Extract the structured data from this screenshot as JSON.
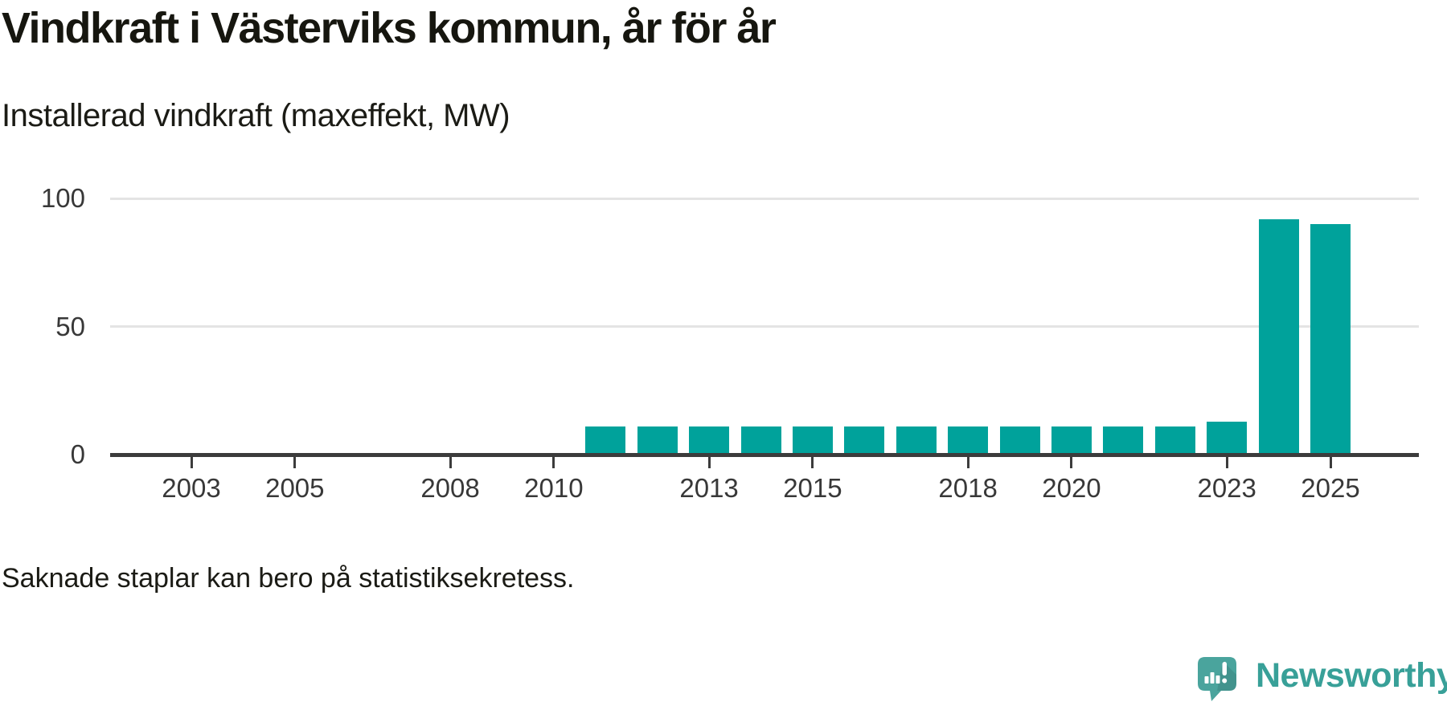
{
  "header": {
    "title": "Vindkraft i Västerviks kommun, år för år",
    "subtitle": "Installerad vindkraft (maxeffekt, MW)"
  },
  "footer": {
    "note": "Saknade staplar kan bero på statistiksekretess.",
    "brand": "Newsworthy",
    "brand_icon": "newsworthy-speech-bubble-barchart-icon"
  },
  "colors": {
    "bar": "#00a29b",
    "axis": "#3c3c3c",
    "gridline": "#e4e4e4",
    "heading_text": "#16160f",
    "tick_label_text": "#383838",
    "logo": "#38a098",
    "logo_icon": "#4aa49d"
  },
  "chart_data": {
    "type": "bar",
    "title": "Vindkraft i Västerviks kommun, år för år",
    "subtitle": "Installerad vindkraft (maxeffekt, MW)",
    "footnote": "Saknade staplar kan bero på statistiksekretess.",
    "unit": "MW",
    "categories": [
      2011,
      2012,
      2013,
      2014,
      2015,
      2016,
      2017,
      2018,
      2019,
      2020,
      2021,
      2022,
      2023,
      2024,
      2025
    ],
    "values": [
      11,
      11,
      11,
      11,
      11,
      11,
      11,
      11,
      11,
      11,
      11,
      11,
      13,
      92,
      90
    ],
    "x_ticks": [
      2003,
      2005,
      2008,
      2010,
      2013,
      2015,
      2018,
      2020,
      2023,
      2025
    ],
    "y_ticks": [
      0,
      50,
      100
    ],
    "ylim": [
      0,
      110
    ],
    "xlim_years": [
      2001.4,
      2026.7
    ],
    "grid": "horizontal-only",
    "legend": "none",
    "bar_color": "#00a29b"
  }
}
